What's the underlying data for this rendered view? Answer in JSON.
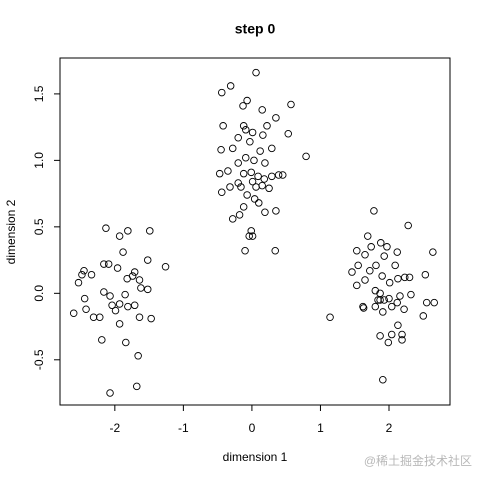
{
  "chart_data": {
    "type": "scatter",
    "title": "step 0",
    "x_label": "dimension 1",
    "y_label": "dimension 2",
    "color": "#000000",
    "xlim": [
      -2.8,
      2.89
    ],
    "ylim": [
      -0.84,
      1.77
    ],
    "xticks": [
      -2,
      -1,
      0,
      1,
      2
    ],
    "yticks": [
      -0.5,
      {
        "value": 0,
        "label": "0.0"
      },
      0.5,
      {
        "value": 1,
        "label": "1.0"
      },
      1.5
    ],
    "x": [
      -2.13,
      -1.81,
      -1.49,
      -1.93,
      -2.16,
      -1.96,
      -2.45,
      -2.48,
      -2.34,
      -2.09,
      -1.26,
      -1.52,
      -1.71,
      -1.74,
      -1.82,
      -1.64,
      -2.53,
      -2.44,
      -2.16,
      -1.85,
      -2.07,
      -1.62,
      -1.52,
      -1.93,
      -1.81,
      -2.04,
      -2.31,
      -2.6,
      -2.42,
      -2.22,
      -1.71,
      -1.99,
      -1.93,
      -1.64,
      -1.47,
      -2.19,
      -1.84,
      -1.66,
      -1.68,
      -2.07,
      -1.88,
      0.06,
      -0.31,
      -0.44,
      -0.07,
      0.57,
      -0.13,
      0.15,
      0.35,
      -0.12,
      -0.42,
      0.22,
      -0.09,
      0.01,
      0.53,
      0.16,
      -0.2,
      -0.03,
      -0.28,
      -0.45,
      0.12,
      0.29,
      0.79,
      -0.09,
      0.03,
      -0.2,
      0.19,
      -0.35,
      -0.47,
      -0.12,
      -0.01,
      0.39,
      0.45,
      0.09,
      0.18,
      0.29,
      -0.2,
      -0.32,
      -0.16,
      0.01,
      0.06,
      0.15,
      0.25,
      -0.07,
      0.04,
      -0.44,
      0.1,
      -0.12,
      0.19,
      0.35,
      -0.18,
      -0.28,
      -0.01,
      -0.04,
      0.01,
      -0.1,
      0.34,
      1.78,
      2.28,
      1.69,
      1.88,
      1.74,
      1.53,
      1.97,
      2.64,
      2.12,
      1.65,
      1.93,
      1.81,
      1.55,
      2.09,
      1.72,
      1.46,
      2.23,
      1.9,
      2.3,
      2.53,
      2.13,
      1.65,
      2.01,
      1.53,
      1.8,
      2.32,
      1.87,
      2.16,
      2.0,
      1.87,
      1.93,
      1.84,
      2.12,
      2.55,
      2.66,
      1.8,
      2.04,
      1.62,
      2.22,
      1.91,
      1.63,
      1.14,
      2.5,
      2.13,
      1.87,
      2.04,
      2.19,
      1.99,
      2.19,
      1.91
    ],
    "values": [
      0.49,
      0.47,
      0.47,
      0.43,
      0.22,
      0.19,
      0.17,
      0.14,
      0.14,
      0.22,
      0.2,
      0.25,
      0.16,
      0.13,
      0.11,
      0.1,
      0.08,
      -0.04,
      0.01,
      -0.01,
      -0.02,
      0.04,
      0.03,
      -0.08,
      -0.1,
      -0.09,
      -0.18,
      -0.15,
      -0.12,
      -0.18,
      -0.09,
      -0.13,
      -0.23,
      -0.18,
      -0.19,
      -0.35,
      -0.37,
      -0.47,
      -0.7,
      -0.75,
      0.31,
      1.66,
      1.56,
      1.51,
      1.45,
      1.42,
      1.41,
      1.38,
      1.32,
      1.26,
      1.26,
      1.26,
      1.23,
      1.21,
      1.2,
      1.19,
      1.17,
      1.14,
      1.09,
      1.08,
      1.07,
      1.09,
      1.03,
      1.02,
      1.0,
      0.98,
      0.98,
      0.92,
      0.9,
      0.9,
      0.91,
      0.89,
      0.89,
      0.88,
      0.86,
      0.88,
      0.83,
      0.8,
      0.8,
      0.84,
      0.8,
      0.81,
      0.79,
      0.74,
      0.71,
      0.76,
      0.68,
      0.65,
      0.61,
      0.62,
      0.59,
      0.56,
      0.47,
      0.43,
      0.43,
      0.32,
      0.32,
      0.62,
      0.51,
      0.43,
      0.38,
      0.35,
      0.32,
      0.35,
      0.31,
      0.31,
      0.29,
      0.28,
      0.21,
      0.21,
      0.21,
      0.17,
      0.16,
      0.12,
      0.13,
      0.12,
      0.14,
      0.11,
      0.1,
      0.08,
      0.06,
      0.02,
      -0.01,
      0.0,
      -0.02,
      -0.04,
      -0.05,
      -0.05,
      -0.05,
      -0.07,
      -0.07,
      -0.07,
      -0.1,
      -0.1,
      -0.1,
      -0.12,
      -0.14,
      -0.11,
      -0.18,
      -0.17,
      -0.24,
      -0.32,
      -0.31,
      -0.31,
      -0.37,
      -0.35,
      -0.65
    ]
  },
  "watermark": "@稀土掘金技术社区"
}
